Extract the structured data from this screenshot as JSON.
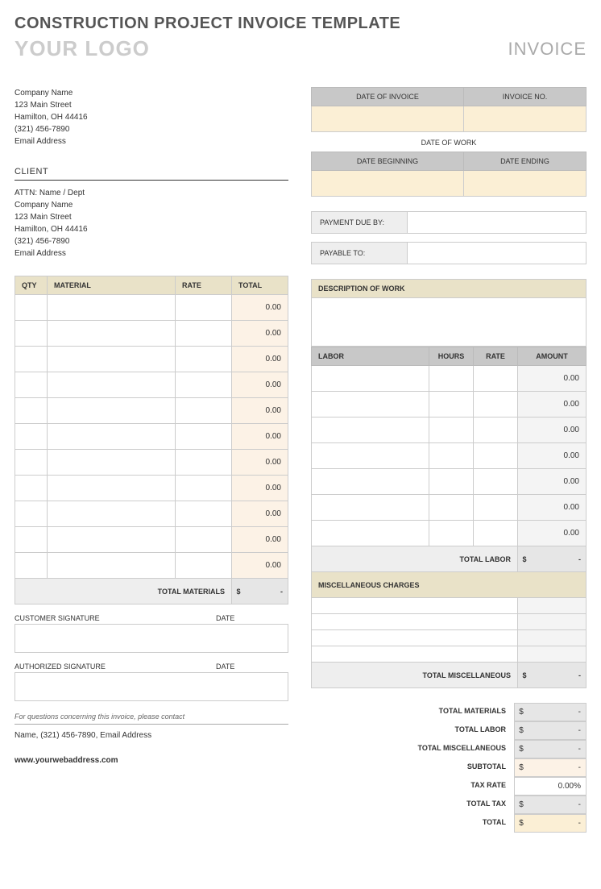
{
  "colors": {
    "headerGray": "#c8c8c8",
    "beige": "#e9e2c8",
    "cream": "#fbefd5",
    "peach": "#fcf2e6",
    "lightGray": "#f4f4f4",
    "border": "#cccccc",
    "textDark": "#333333",
    "logoGray": "#cccccc",
    "invoiceGray": "#aaaaaa"
  },
  "title": "CONSTRUCTION PROJECT INVOICE TEMPLATE",
  "logo_text": "YOUR LOGO",
  "invoice_label": "INVOICE",
  "company": {
    "name": "Company Name",
    "street": "123 Main Street",
    "city": "Hamilton, OH  44416",
    "phone": "(321) 456-7890",
    "email": "Email Address"
  },
  "client_label": "CLIENT",
  "client": {
    "attn": "ATTN: Name / Dept",
    "name": "Company Name",
    "street": "123 Main Street",
    "city": "Hamilton, OH  44416",
    "phone": "(321) 456-7890",
    "email": "Email Address"
  },
  "invoice_meta": {
    "date_invoice_label": "DATE OF INVOICE",
    "invoice_no_label": "INVOICE NO.",
    "date_work_label": "DATE OF WORK",
    "date_begin_label": "DATE BEGINNING",
    "date_end_label": "DATE ENDING",
    "payment_due_label": "PAYMENT DUE BY:",
    "payable_to_label": "PAYABLE TO:"
  },
  "materials": {
    "headers": {
      "qty": "QTY",
      "material": "MATERIAL",
      "rate": "RATE",
      "total": "TOTAL"
    },
    "rows": [
      {
        "qty": "",
        "material": "",
        "rate": "",
        "total": "0.00"
      },
      {
        "qty": "",
        "material": "",
        "rate": "",
        "total": "0.00"
      },
      {
        "qty": "",
        "material": "",
        "rate": "",
        "total": "0.00"
      },
      {
        "qty": "",
        "material": "",
        "rate": "",
        "total": "0.00"
      },
      {
        "qty": "",
        "material": "",
        "rate": "",
        "total": "0.00"
      },
      {
        "qty": "",
        "material": "",
        "rate": "",
        "total": "0.00"
      },
      {
        "qty": "",
        "material": "",
        "rate": "",
        "total": "0.00"
      },
      {
        "qty": "",
        "material": "",
        "rate": "",
        "total": "0.00"
      },
      {
        "qty": "",
        "material": "",
        "rate": "",
        "total": "0.00"
      },
      {
        "qty": "",
        "material": "",
        "rate": "",
        "total": "0.00"
      },
      {
        "qty": "",
        "material": "",
        "rate": "",
        "total": "0.00"
      }
    ],
    "footer_label": "TOTAL MATERIALS",
    "footer_sym": "$",
    "footer_val": "-"
  },
  "work": {
    "description_label": "DESCRIPTION OF WORK",
    "labor_headers": {
      "labor": "LABOR",
      "hours": "HOURS",
      "rate": "RATE",
      "amount": "AMOUNT"
    },
    "labor_rows": [
      {
        "labor": "",
        "hours": "",
        "rate": "",
        "amount": "0.00"
      },
      {
        "labor": "",
        "hours": "",
        "rate": "",
        "amount": "0.00"
      },
      {
        "labor": "",
        "hours": "",
        "rate": "",
        "amount": "0.00"
      },
      {
        "labor": "",
        "hours": "",
        "rate": "",
        "amount": "0.00"
      },
      {
        "labor": "",
        "hours": "",
        "rate": "",
        "amount": "0.00"
      },
      {
        "labor": "",
        "hours": "",
        "rate": "",
        "amount": "0.00"
      },
      {
        "labor": "",
        "hours": "",
        "rate": "",
        "amount": "0.00"
      }
    ],
    "total_labor_label": "TOTAL LABOR",
    "total_labor_sym": "$",
    "total_labor_val": "-",
    "misc_label": "MISCELLANEOUS CHARGES",
    "misc_rows": 4,
    "total_misc_label": "TOTAL MISCELLANEOUS",
    "total_misc_sym": "$",
    "total_misc_val": "-"
  },
  "signatures": {
    "customer_label": "CUSTOMER SIGNATURE",
    "authorized_label": "AUTHORIZED SIGNATURE",
    "date_label": "DATE"
  },
  "totals": {
    "rows": [
      {
        "label": "TOTAL MATERIALS",
        "sym": "$",
        "val": "-",
        "bg": "#e6e6e6"
      },
      {
        "label": "TOTAL LABOR",
        "sym": "$",
        "val": "-",
        "bg": "#e6e6e6"
      },
      {
        "label": "TOTAL MISCELLANEOUS",
        "sym": "$",
        "val": "-",
        "bg": "#e6e6e6"
      },
      {
        "label": "SUBTOTAL",
        "sym": "$",
        "val": "-",
        "bg": "#fcf2e6"
      },
      {
        "label": "TAX RATE",
        "sym": "",
        "val": "0.00%",
        "bg": "#ffffff"
      },
      {
        "label": "TOTAL TAX",
        "sym": "$",
        "val": "-",
        "bg": "#e6e6e6"
      },
      {
        "label": "TOTAL",
        "sym": "$",
        "val": "-",
        "bg": "#fbefd5"
      }
    ]
  },
  "contact": {
    "note": "For questions concerning this invoice, please contact",
    "line": "Name, (321) 456-7890, Email Address"
  },
  "web": "www.yourwebaddress.com"
}
